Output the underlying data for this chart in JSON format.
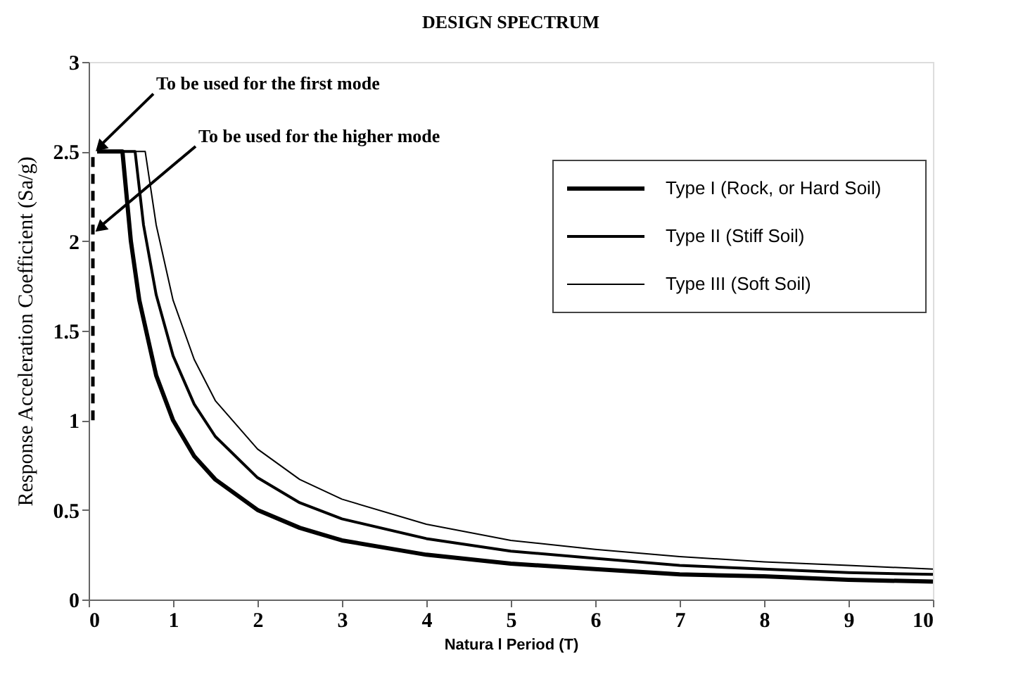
{
  "chart_data": {
    "type": "line",
    "title": "DESIGN SPECTRUM",
    "xlabel": "Natura l Period (T)",
    "ylabel": "Response Acceleration Coefficient (Sa/g)",
    "xlim": [
      0,
      10
    ],
    "ylim": [
      0,
      3
    ],
    "xticks": [
      0,
      1,
      2,
      3,
      4,
      5,
      6,
      7,
      8,
      9,
      10
    ],
    "yticks": [
      0,
      0.5,
      1,
      1.5,
      2,
      2.5,
      3
    ],
    "grid": false,
    "legend": "top right",
    "series": [
      {
        "name": "Type I (Rock, or Hard Soil)",
        "color": "#000000",
        "x": [
          0.1,
          0.4,
          0.5,
          0.6,
          0.8,
          1,
          1.25,
          1.5,
          2,
          2.5,
          3,
          4,
          5,
          6,
          7,
          8,
          9,
          10
        ],
        "values": [
          2.5,
          2.5,
          2.0,
          1.67,
          1.25,
          1.0,
          0.8,
          0.67,
          0.5,
          0.4,
          0.33,
          0.25,
          0.2,
          0.17,
          0.14,
          0.13,
          0.11,
          0.1
        ]
      },
      {
        "name": "Type II (Stiff Soil)",
        "color": "#000000",
        "x": [
          0.1,
          0.55,
          0.65,
          0.8,
          1,
          1.25,
          1.5,
          2,
          2.5,
          3,
          4,
          5,
          6,
          7,
          8,
          9,
          10
        ],
        "values": [
          2.5,
          2.5,
          2.09,
          1.7,
          1.36,
          1.09,
          0.91,
          0.68,
          0.54,
          0.45,
          0.34,
          0.27,
          0.23,
          0.19,
          0.17,
          0.15,
          0.14
        ]
      },
      {
        "name": "Type III (Soft Soil)",
        "color": "#000000",
        "x": [
          0.1,
          0.67,
          0.8,
          1,
          1.25,
          1.5,
          2,
          2.5,
          3,
          4,
          5,
          6,
          7,
          8,
          9,
          10
        ],
        "values": [
          2.5,
          2.5,
          2.09,
          1.67,
          1.34,
          1.11,
          0.84,
          0.67,
          0.56,
          0.42,
          0.33,
          0.28,
          0.24,
          0.21,
          0.19,
          0.17
        ]
      },
      {
        "color": "#000000",
        "line_style": "dashed",
        "x": [
          0.05,
          0.05
        ],
        "values": [
          1,
          2.5
        ]
      }
    ],
    "annotations": [
      {
        "text": "To be used for the first mode",
        "x": 0.05,
        "y": 2.5
      },
      {
        "text": "To  be used for the higher mode",
        "x": 0.05,
        "y": 2.05
      }
    ]
  }
}
